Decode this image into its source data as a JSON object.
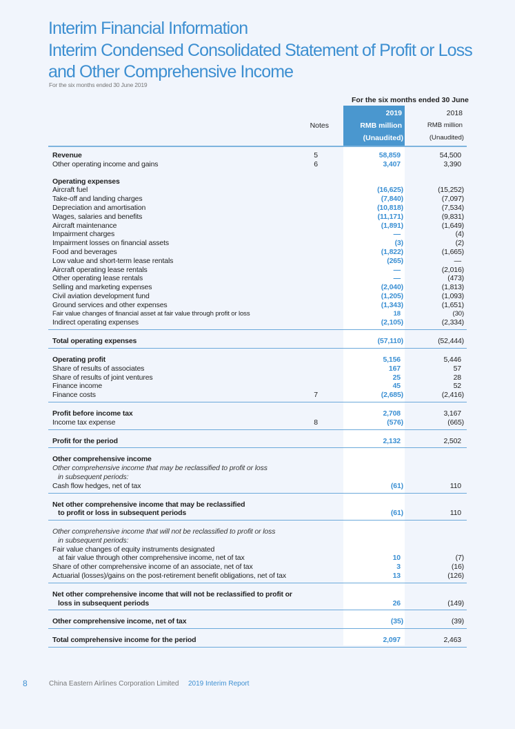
{
  "header": {
    "section": "Interim Financial Information",
    "title_line1": "Interim Condensed Consolidated Statement of Profit or Loss",
    "title_line2": "and Other Comprehensive Income",
    "subtitle": "For the six months ended 30 June 2019"
  },
  "columns": {
    "period": "For the six months ended 30 June",
    "notes": "Notes",
    "y2019": "2019",
    "unit2019": "RMB million",
    "status2019": "(Unaudited)",
    "y2018": "2018",
    "unit2018": "RMB million",
    "status2018": "(Unaudited)"
  },
  "rows": [
    {
      "label": "Revenue",
      "note": "5",
      "v19": "58,859",
      "v18": "54,500",
      "style": "bold"
    },
    {
      "label": "Other operating income and gains",
      "note": "6",
      "v19": "3,407",
      "v18": "3,390"
    },
    {
      "spacer": true
    },
    {
      "label": "Operating expenses",
      "style": "bold"
    },
    {
      "label": "Aircraft fuel",
      "v19": "(16,625)",
      "v18": "(15,252)"
    },
    {
      "label": "Take-off and landing charges",
      "v19": "(7,840)",
      "v18": "(7,097)"
    },
    {
      "label": "Depreciation and amortisation",
      "v19": "(10,818)",
      "v18": "(7,534)"
    },
    {
      "label": "Wages, salaries and benefits",
      "v19": "(11,171)",
      "v18": "(9,831)"
    },
    {
      "label": "Aircraft maintenance",
      "v19": "(1,891)",
      "v18": "(1,649)"
    },
    {
      "label": "Impairment charges",
      "v19": "—",
      "v18": "(4)"
    },
    {
      "label": "Impairment losses on financial assets",
      "v19": "(3)",
      "v18": "(2)"
    },
    {
      "label": "Food and beverages",
      "v19": "(1,822)",
      "v18": "(1,665)"
    },
    {
      "label": "Low value and short-term lease rentals",
      "v19": "(265)",
      "v18": "—"
    },
    {
      "label": "Aircraft operating lease rentals",
      "v19": "—",
      "v18": "(2,016)"
    },
    {
      "label": "Other operating lease rentals",
      "v19": "—",
      "v18": "(473)"
    },
    {
      "label": "Selling and marketing expenses",
      "v19": "(2,040)",
      "v18": "(1,813)"
    },
    {
      "label": "Civil aviation development fund",
      "v19": "(1,205)",
      "v18": "(1,093)"
    },
    {
      "label": "Ground services and other expenses",
      "v19": "(1,343)",
      "v18": "(1,651)"
    },
    {
      "label": "Fair value changes of financial asset at fair value through profit or loss",
      "v19": "18",
      "v18": "(30)",
      "style": "small"
    },
    {
      "label": "Indirect operating expenses",
      "v19": "(2,105)",
      "v18": "(2,334)",
      "style": "rule"
    },
    {
      "label": "Total operating expenses",
      "v19": "(57,110)",
      "v18": "(52,444)",
      "style": "bold rule"
    },
    {
      "label": "Operating profit",
      "v19": "5,156",
      "v18": "5,446",
      "style": "bold"
    },
    {
      "label": "Share of results of associates",
      "v19": "167",
      "v18": "57"
    },
    {
      "label": "Share of results of joint ventures",
      "v19": "25",
      "v18": "28"
    },
    {
      "label": "Finance income",
      "v19": "45",
      "v18": "52"
    },
    {
      "label": "Finance costs",
      "note": "7",
      "v19": "(2,685)",
      "v18": "(2,416)",
      "style": "rule"
    },
    {
      "label": "Profit before income tax",
      "v19": "2,708",
      "v18": "3,167",
      "style": "bold"
    },
    {
      "label": "Income tax expense",
      "note": "8",
      "v19": "(576)",
      "v18": "(665)",
      "style": "rule"
    },
    {
      "label": "Profit for the period",
      "v19": "2,132",
      "v18": "2,502",
      "style": "bold rule"
    },
    {
      "label": "Other comprehensive income",
      "style": "bold"
    },
    {
      "label": "Other comprehensive income that may be reclassified to profit or loss",
      "style": "italic"
    },
    {
      "label": "in subsequent periods:",
      "style": "italic indent"
    },
    {
      "label": "Cash flow hedges, net of tax",
      "v19": "(61)",
      "v18": "110",
      "style": "rule"
    },
    {
      "label": "Net other comprehensive income that may be reclassified",
      "style": "bold"
    },
    {
      "label": "to profit or loss in subsequent periods",
      "v19": "(61)",
      "v18": "110",
      "style": "bold indent rule"
    },
    {
      "label": "Other comprehensive income that will not be reclassified to profit or loss",
      "style": "italic"
    },
    {
      "label": "in subsequent periods:",
      "style": "italic indent"
    },
    {
      "label": "Fair value changes of equity instruments designated"
    },
    {
      "label": "at fair value through other comprehensive income, net of tax",
      "v19": "10",
      "v18": "(7)",
      "style": "indent"
    },
    {
      "label": "Share of other comprehensive income of an associate, net of tax",
      "v19": "3",
      "v18": "(16)"
    },
    {
      "label": "Actuarial (losses)/gains on the post-retirement benefit obligations, net of tax",
      "v19": "13",
      "v18": "(126)",
      "style": "rule"
    },
    {
      "label": "Net other comprehensive income that will not be reclassified to profit or",
      "style": "bold"
    },
    {
      "label": "loss in subsequent periods",
      "v19": "26",
      "v18": "(149)",
      "style": "bold indent rule"
    },
    {
      "label": "Other comprehensive income, net of tax",
      "v19": "(35)",
      "v18": "(39)",
      "style": "bold rule"
    },
    {
      "label": "Total comprehensive income for the period",
      "v19": "2,097",
      "v18": "2,463",
      "style": "bold rule"
    }
  ],
  "footer": {
    "page": "8",
    "company": "China Eastern Airlines Corporation Limited",
    "report": "2019 Interim Report"
  },
  "colors": {
    "accent": "#3d8fd1",
    "header_cell": "#4a97cf",
    "page_bg": "#f1f5fc"
  }
}
